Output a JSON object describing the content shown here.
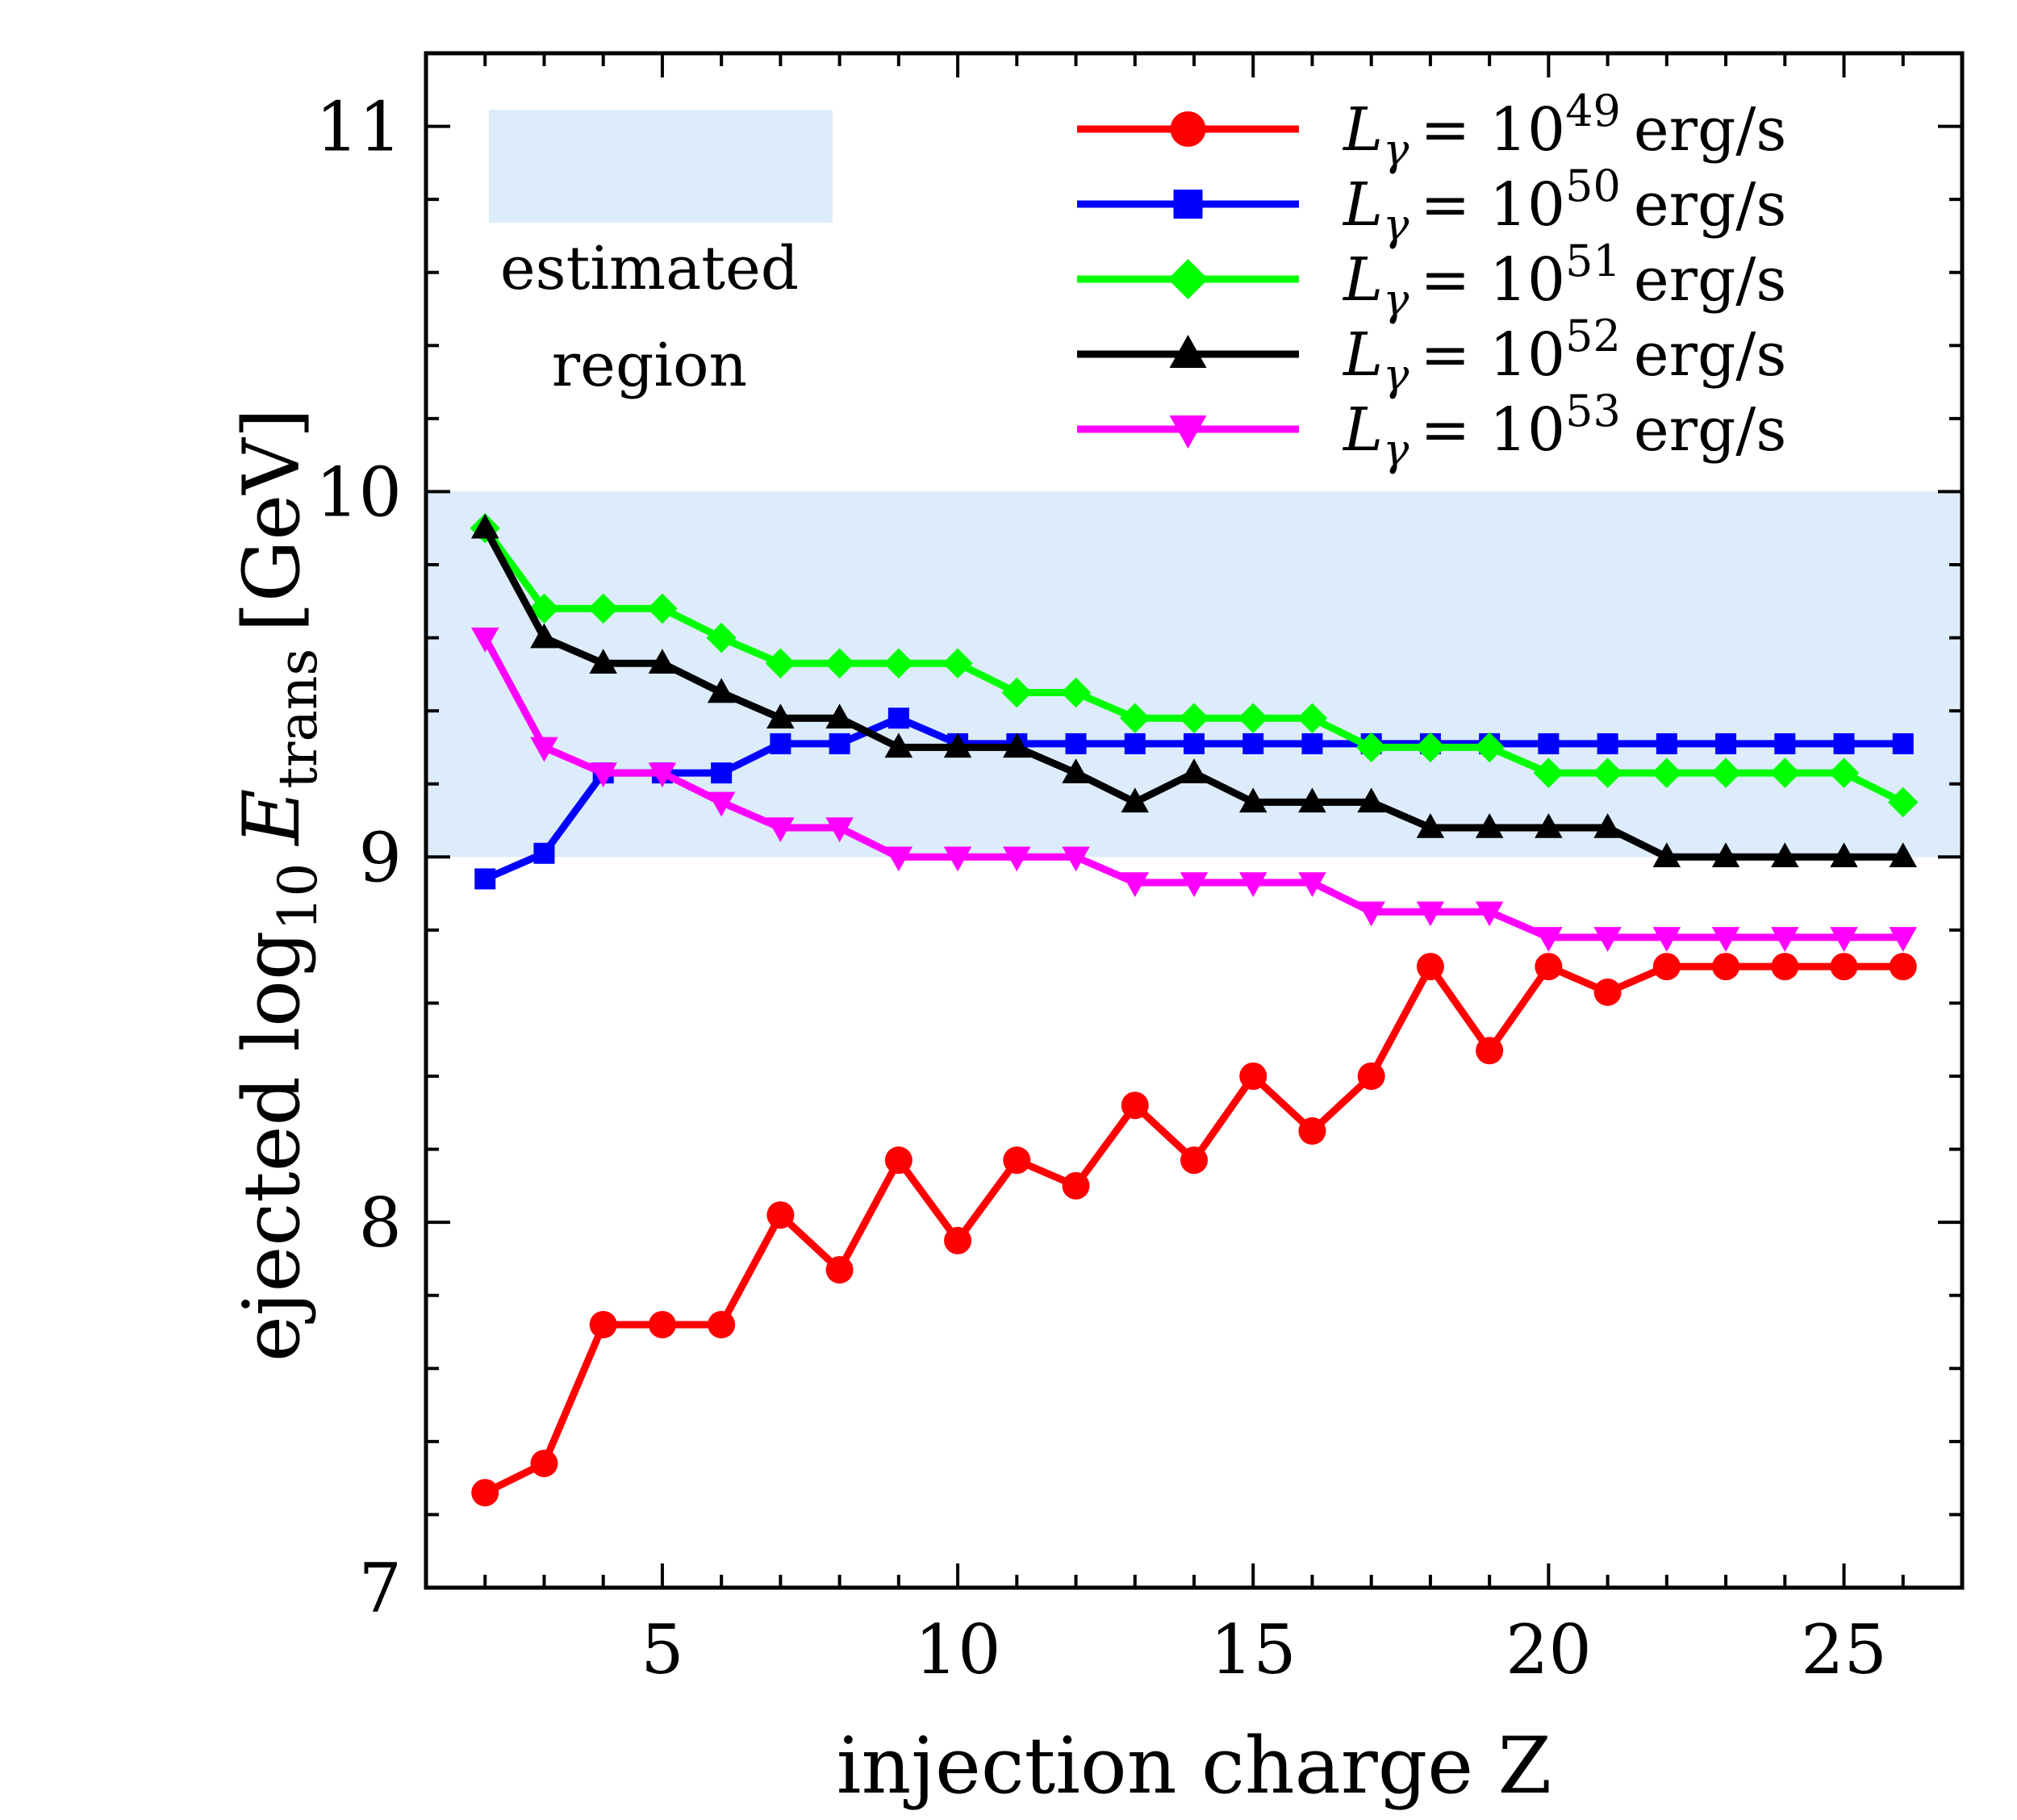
{
  "chart_data": {
    "type": "line",
    "title": "",
    "xlabel": "injection charge Z",
    "ylabel": {
      "prefix": "ejected log",
      "log_subscript": "10",
      "symbol": "E",
      "symbol_subscript": "trans",
      "unit": "[GeV]"
    },
    "xlim": [
      1,
      27
    ],
    "ylim": [
      7,
      11.2
    ],
    "x_ticks": [
      5,
      10,
      15,
      20,
      25
    ],
    "x_minor_step": 1,
    "y_ticks": [
      7,
      8,
      9,
      10,
      11
    ],
    "y_minor_step": 0.2,
    "shaded_region": {
      "y_range": [
        9,
        10
      ],
      "color": "#dcecfb",
      "label_line1": "estimated",
      "label_line2": "region"
    },
    "legend_position": "top-right",
    "x": [
      2,
      3,
      4,
      5,
      6,
      7,
      8,
      9,
      10,
      11,
      12,
      13,
      14,
      15,
      16,
      17,
      18,
      19,
      20,
      21,
      22,
      23,
      24,
      25,
      26
    ],
    "series": [
      {
        "name": "L_γ = 10^49 erg/s",
        "legend_base": "= 10",
        "exponent": "49",
        "unit": "erg/s",
        "color": "#ff0000",
        "marker": "circle",
        "values": [
          7.26,
          7.34,
          7.72,
          7.72,
          7.72,
          8.02,
          7.87,
          8.17,
          7.95,
          8.17,
          8.1,
          8.32,
          8.17,
          8.4,
          8.25,
          8.4,
          8.7,
          8.47,
          8.7,
          8.63,
          8.7,
          8.7,
          8.7,
          8.7,
          8.7
        ]
      },
      {
        "name": "L_γ = 10^50 erg/s",
        "legend_base": "= 10",
        "exponent": "50",
        "unit": "erg/s",
        "color": "#0000ff",
        "marker": "square",
        "values": [
          8.94,
          9.01,
          9.23,
          9.23,
          9.23,
          9.31,
          9.31,
          9.38,
          9.31,
          9.31,
          9.31,
          9.31,
          9.31,
          9.31,
          9.31,
          9.31,
          9.31,
          9.31,
          9.31,
          9.31,
          9.31,
          9.31,
          9.31,
          9.31,
          9.31
        ]
      },
      {
        "name": "L_γ = 10^51 erg/s",
        "legend_base": "= 10",
        "exponent": "51",
        "unit": "erg/s",
        "color": "#00ff00",
        "marker": "diamond",
        "values": [
          9.9,
          9.68,
          9.68,
          9.68,
          9.6,
          9.53,
          9.53,
          9.53,
          9.53,
          9.45,
          9.45,
          9.38,
          9.38,
          9.38,
          9.38,
          9.3,
          9.3,
          9.3,
          9.23,
          9.23,
          9.23,
          9.23,
          9.23,
          9.23,
          9.15
        ]
      },
      {
        "name": "L_γ = 10^52 erg/s",
        "legend_base": "= 10",
        "exponent": "52",
        "unit": "erg/s",
        "color": "#000000",
        "marker": "triangle-up",
        "values": [
          9.9,
          9.6,
          9.53,
          9.53,
          9.45,
          9.38,
          9.38,
          9.3,
          9.3,
          9.3,
          9.23,
          9.15,
          9.23,
          9.15,
          9.15,
          9.15,
          9.08,
          9.08,
          9.08,
          9.08,
          9.0,
          9.0,
          9.0,
          9.0,
          9.0
        ]
      },
      {
        "name": "L_γ = 10^53 erg/s",
        "legend_base": "= 10",
        "exponent": "53",
        "unit": "erg/s",
        "color": "#ff00ff",
        "marker": "triangle-down",
        "values": [
          9.6,
          9.3,
          9.23,
          9.23,
          9.15,
          9.08,
          9.08,
          9.0,
          9.0,
          9.0,
          9.0,
          8.93,
          8.93,
          8.93,
          8.93,
          8.85,
          8.85,
          8.85,
          8.78,
          8.78,
          8.78,
          8.78,
          8.78,
          8.78,
          8.78
        ]
      }
    ]
  }
}
